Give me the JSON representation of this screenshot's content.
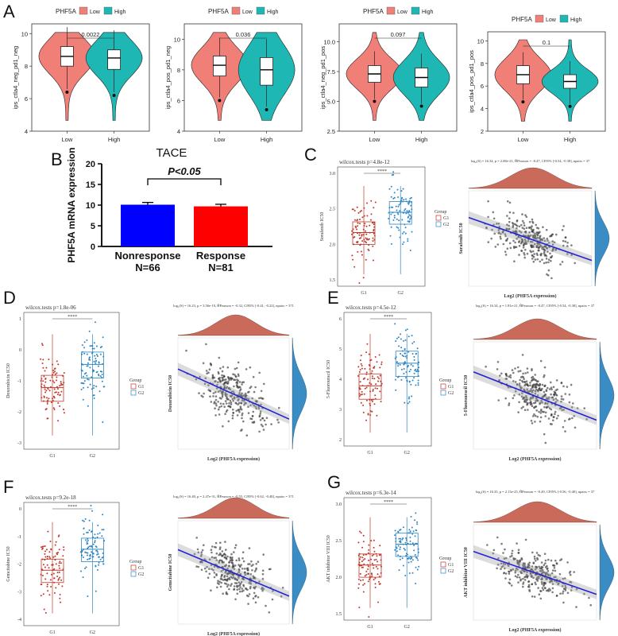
{
  "panels": [
    {
      "letter": "A"
    },
    {
      "letter": "B"
    },
    {
      "letter": "C"
    },
    {
      "letter": "D"
    },
    {
      "letter": "E"
    },
    {
      "letter": "F"
    },
    {
      "letter": "G"
    }
  ],
  "colors": {
    "low": "#f07f78",
    "high": "#1fb7b4",
    "g1": "#c0392b",
    "g2": "#2e86c1",
    "density": "#c96a5a",
    "density2": "#3a8cc4",
    "fit": "#2323d6",
    "bar_blue": "#0000ff",
    "bar_red": "#ff0000"
  },
  "panelA": {
    "legend_title": "PHF5A",
    "legend_low": "Low",
    "legend_high": "High",
    "x_categories": [
      "Low",
      "High"
    ],
    "plots": [
      {
        "ylabel": "ips_ctla4_neg_pd1_neg",
        "pvalue": "0.0022",
        "yticks": [
          "4",
          "6",
          "8",
          "10"
        ],
        "ylim": [
          4,
          10.6
        ],
        "low_median": 8.6,
        "high_median": 8.5,
        "low_q": [
          8.0,
          9.2
        ],
        "high_q": [
          7.8,
          9.0
        ]
      },
      {
        "ylabel": "ips_ctla4_pos_pd1_neg",
        "pvalue": "0.036",
        "yticks": [
          "4",
          "6",
          "8",
          "10"
        ],
        "ylim": [
          4,
          11
        ],
        "low_median": 8.3,
        "high_median": 8.0,
        "low_q": [
          7.6,
          8.9
        ],
        "high_q": [
          7.0,
          8.8
        ]
      },
      {
        "ylabel": "ips_ctla4_neg_pd1_pos",
        "pvalue": "0.097",
        "yticks": [
          "2.5",
          "5.0",
          "7.5",
          "10.0"
        ],
        "ylim": [
          2.5,
          11.5
        ],
        "low_median": 7.3,
        "high_median": 7.0,
        "low_q": [
          6.6,
          8.0
        ],
        "high_q": [
          6.2,
          7.8
        ]
      },
      {
        "ylabel": "ips_ctla4_pos_pd1_pos",
        "pvalue": "0.1",
        "yticks": [
          "2",
          "4",
          "6",
          "8",
          "10"
        ],
        "ylim": [
          2,
          10.8
        ],
        "low_median": 7.0,
        "high_median": 6.4,
        "low_q": [
          6.2,
          7.8
        ],
        "high_q": [
          5.8,
          7.0
        ]
      }
    ]
  },
  "chart_data": [
    {
      "type": "bar",
      "title": "TACE",
      "ylabel": "PHF5A mRNA expression",
      "categories": [
        "Nonresponse",
        "Response"
      ],
      "category_counts": [
        "N=66",
        "N=81"
      ],
      "values": [
        10.1,
        9.7
      ],
      "errors": [
        0.55,
        0.5
      ],
      "ylim": [
        0,
        20
      ],
      "yticks": [
        "0",
        "5",
        "10",
        "15",
        "20"
      ],
      "annotation": "P<0.05"
    }
  ],
  "drug_panels": [
    {
      "letter": "C",
      "title": "wilcox.tests p=4.8e-12",
      "stars": "****",
      "ylabel": "Sorafenib IC50",
      "scatter_ylabel": "Sorafenib IC50",
      "stat": "log₁(S) = 16.34, p = 2.08e-21, ĤPearson = -0.47, CI95% [-0.54, -0.38], npairs = 37",
      "xlabel": "Log2 (PHF5A expression)",
      "xcat": [
        "G1",
        "G2"
      ],
      "legend_title": "Group",
      "legend": [
        "G1",
        "G2"
      ],
      "yticks": [
        "1.5",
        "2.0",
        "2.5",
        "3.0"
      ]
    },
    {
      "letter": "D",
      "title": "wilcox.tests p=1.8e-06",
      "stars": "****",
      "ylabel": "Doxorubicin IC50",
      "scatter_ylabel": "Doxorubicin IC50",
      "stat": "log₁(S) = 16.23, p = 3.56e-10, ĤPearson = -0.32, CI95% [-0.41, -0.22], npairs = 371",
      "xlabel": "Log2 (PHF5A expression)",
      "xcat": [
        "G1",
        "G2"
      ],
      "legend_title": "Group",
      "legend": [
        "G1",
        "G2"
      ],
      "yticks": [
        "-3",
        "-2",
        "-1",
        "0",
        "1"
      ]
    },
    {
      "letter": "E",
      "title": "wilcox.tests p=4.5e-12",
      "stars": "****",
      "ylabel": "5-Fluorouracil IC50",
      "scatter_ylabel": "5-Fluorouracil IC50",
      "stat": "log₁(S) = 16.34, p = 1.81e-21, ĤPearson = -0.47, CI95% [-0.54, -0.38], npairs = 37",
      "xlabel": "Log2 (PHF5A expression)",
      "xcat": [
        "G1",
        "G2"
      ],
      "legend_title": "Group",
      "legend": [
        "G1",
        "G2"
      ],
      "yticks": [
        "2",
        "3",
        "4",
        "5",
        "6"
      ]
    },
    {
      "letter": "F",
      "title": "wilcox.tests p=9.2e-18",
      "stars": "****",
      "ylabel": "Gemcitabine IC50",
      "scatter_ylabel": "Gemcitabine IC50",
      "stat": "log₁(S) = 16.40, p = 2.47e-31, ĤPearson = -0.55, CI95% [-0.62, -0.48], npairs = 371",
      "xlabel": "Log2 (PHF5A expression)",
      "xcat": [
        "G1",
        "G2"
      ],
      "legend_title": "Group",
      "legend": [
        "G1",
        "G2"
      ],
      "yticks": [
        "-4",
        "-3",
        "-2",
        "-1",
        "0"
      ]
    },
    {
      "letter": "G",
      "title": "wilcox.tests p=6.3e-14",
      "stars": "****",
      "ylabel": "AKT inhibitor VIII IC50",
      "scatter_ylabel": "AKT inhibitor VIII IC50",
      "stat": "log₁(S) = 16.35, p = 2.13e-25, ĤPearson = -0.49, CI95% [-0.56, -0.40], npairs = 37",
      "xlabel": "Log2 (PHF5A expression)",
      "xcat": [
        "G1",
        "G2"
      ],
      "legend_title": "Group",
      "legend": [
        "G1",
        "G2"
      ],
      "yticks": [
        "1.5",
        "2.0",
        "2.5",
        "3.0"
      ]
    }
  ]
}
